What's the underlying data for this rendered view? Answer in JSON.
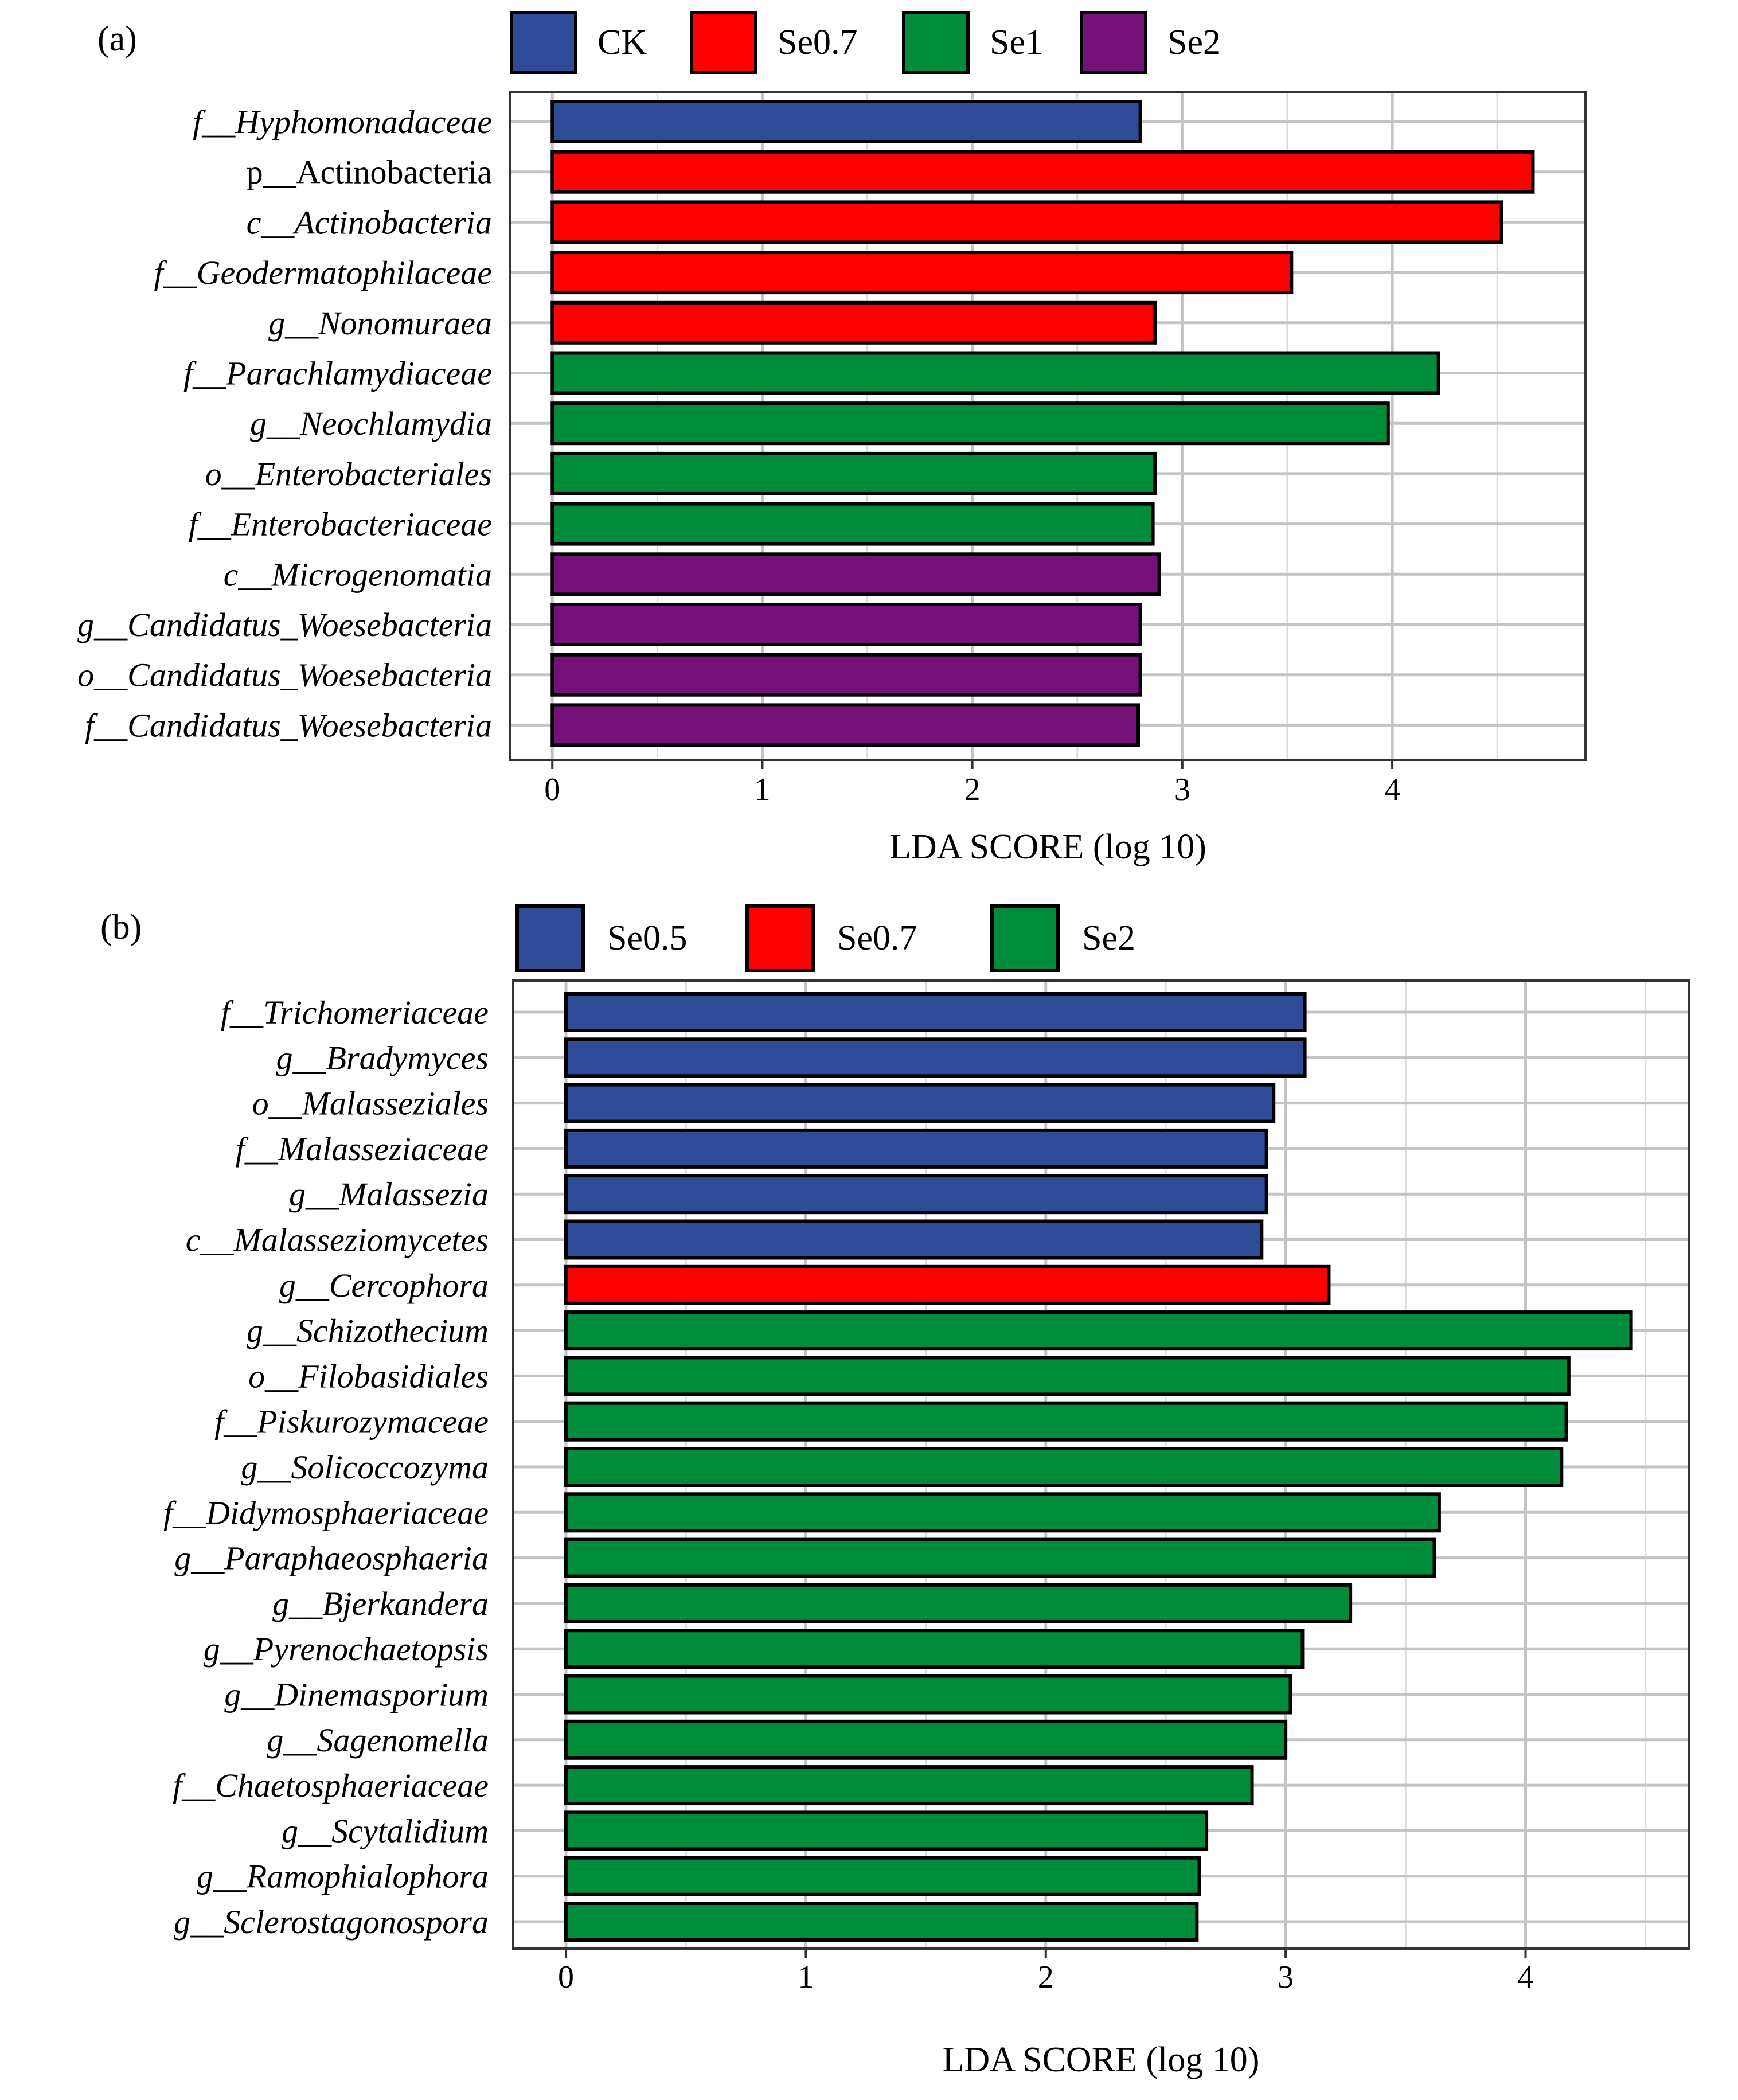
{
  "colors": {
    "blue": "#2f4a96",
    "red": "#ff0000",
    "green": "#008c3a",
    "purple": "#75127a"
  },
  "chart_data": [
    {
      "panel_label": "(a)",
      "type": "bar",
      "orientation": "horizontal",
      "xlabel": "LDA SCORE (log 10)",
      "ylabel": "",
      "xlim": [
        -0.2,
        4.92
      ],
      "xticks": [
        0,
        1,
        2,
        3,
        4
      ],
      "grid": true,
      "legend_position": "top",
      "legend": [
        {
          "name": "CK",
          "color": "#2f4a96"
        },
        {
          "name": "Se0.7",
          "color": "#ff0000"
        },
        {
          "name": "Se1",
          "color": "#008c3a"
        },
        {
          "name": "Se2",
          "color": "#75127a"
        }
      ],
      "bars": [
        {
          "prefix": "f",
          "taxon": "Hyphomonadaceae",
          "italic": true,
          "group": "CK",
          "value": 2.8
        },
        {
          "prefix": "p",
          "taxon": "Actinobacteria",
          "italic": false,
          "group": "Se0.7",
          "value": 4.67
        },
        {
          "prefix": "c",
          "taxon": "Actinobacteria",
          "italic": true,
          "group": "Se0.7",
          "value": 4.52
        },
        {
          "prefix": "f",
          "taxon": "Geodermatophilaceae",
          "italic": true,
          "group": "Se0.7",
          "value": 3.52
        },
        {
          "prefix": "g",
          "taxon": "Nonomuraea",
          "italic": true,
          "group": "Se0.7",
          "value": 2.87
        },
        {
          "prefix": "f",
          "taxon": "Parachlamydiaceae",
          "italic": true,
          "group": "Se1",
          "value": 4.22
        },
        {
          "prefix": "g",
          "taxon": "Neochlamydia",
          "italic": true,
          "group": "Se1",
          "value": 3.98
        },
        {
          "prefix": "o",
          "taxon": "Enterobacteriales",
          "italic": true,
          "group": "Se1",
          "value": 2.87
        },
        {
          "prefix": "f",
          "taxon": "Enterobacteriaceae",
          "italic": true,
          "group": "Se1",
          "value": 2.86
        },
        {
          "prefix": "c",
          "taxon": "Microgenomatia",
          "italic": true,
          "group": "Se2",
          "value": 2.89
        },
        {
          "prefix": "g",
          "taxon": "Candidatus_Woesebacteria",
          "italic": true,
          "group": "Se2",
          "value": 2.8
        },
        {
          "prefix": "o",
          "taxon": "Candidatus_Woesebacteria",
          "italic": true,
          "group": "Se2",
          "value": 2.8
        },
        {
          "prefix": "f",
          "taxon": "Candidatus_Woesebacteria",
          "italic": true,
          "group": "Se2",
          "value": 2.79
        }
      ]
    },
    {
      "panel_label": "(b)",
      "type": "bar",
      "orientation": "horizontal",
      "xlabel": "LDA SCORE (log 10)",
      "ylabel": "",
      "xlim": [
        -0.22,
        4.68
      ],
      "xticks": [
        0,
        1,
        2,
        3,
        4
      ],
      "grid": true,
      "legend_position": "top",
      "legend": [
        {
          "name": "Se0.5",
          "color": "#2f4a96"
        },
        {
          "name": "Se0.7",
          "color": "#ff0000"
        },
        {
          "name": "Se2",
          "color": "#008c3a"
        }
      ],
      "bars": [
        {
          "prefix": "f",
          "taxon": "Trichomeriaceae",
          "italic": true,
          "group": "Se0.5",
          "value": 3.08
        },
        {
          "prefix": "g",
          "taxon": "Bradymyces",
          "italic": true,
          "group": "Se0.5",
          "value": 3.08
        },
        {
          "prefix": "o",
          "taxon": "Malasseziales",
          "italic": true,
          "group": "Se0.5",
          "value": 2.95
        },
        {
          "prefix": "f",
          "taxon": "Malasseziaceae",
          "italic": true,
          "group": "Se0.5",
          "value": 2.92
        },
        {
          "prefix": "g",
          "taxon": "Malassezia",
          "italic": true,
          "group": "Se0.5",
          "value": 2.92
        },
        {
          "prefix": "c",
          "taxon": "Malasseziomycetes",
          "italic": true,
          "group": "Se0.5",
          "value": 2.9
        },
        {
          "prefix": "g",
          "taxon": "Cercophora",
          "italic": true,
          "group": "Se0.7",
          "value": 3.18
        },
        {
          "prefix": "g",
          "taxon": "Schizothecium",
          "italic": true,
          "group": "Se2",
          "value": 4.44
        },
        {
          "prefix": "o",
          "taxon": "Filobasidiales",
          "italic": true,
          "group": "Se2",
          "value": 4.18
        },
        {
          "prefix": "f",
          "taxon": "Piskurozymaceae",
          "italic": true,
          "group": "Se2",
          "value": 4.17
        },
        {
          "prefix": "g",
          "taxon": "Solicoccozyma",
          "italic": true,
          "group": "Se2",
          "value": 4.15
        },
        {
          "prefix": "f",
          "taxon": "Didymosphaeriaceae",
          "italic": true,
          "group": "Se2",
          "value": 3.64
        },
        {
          "prefix": "g",
          "taxon": "Paraphaeosphaeria",
          "italic": true,
          "group": "Se2",
          "value": 3.62
        },
        {
          "prefix": "g",
          "taxon": "Bjerkandera",
          "italic": true,
          "group": "Se2",
          "value": 3.27
        },
        {
          "prefix": "g",
          "taxon": "Pyrenochaetopsis",
          "italic": true,
          "group": "Se2",
          "value": 3.07
        },
        {
          "prefix": "g",
          "taxon": "Dinemasporium",
          "italic": true,
          "group": "Se2",
          "value": 3.02
        },
        {
          "prefix": "g",
          "taxon": "Sagenomella",
          "italic": true,
          "group": "Se2",
          "value": 3.0
        },
        {
          "prefix": "f",
          "taxon": "Chaetosphaeriaceae",
          "italic": true,
          "group": "Se2",
          "value": 2.86
        },
        {
          "prefix": "g",
          "taxon": "Scytalidium",
          "italic": true,
          "group": "Se2",
          "value": 2.67
        },
        {
          "prefix": "g",
          "taxon": "Ramophialophora",
          "italic": true,
          "group": "Se2",
          "value": 2.64
        },
        {
          "prefix": "g",
          "taxon": "Sclerostagonospora",
          "italic": true,
          "group": "Se2",
          "value": 2.63
        }
      ]
    }
  ]
}
